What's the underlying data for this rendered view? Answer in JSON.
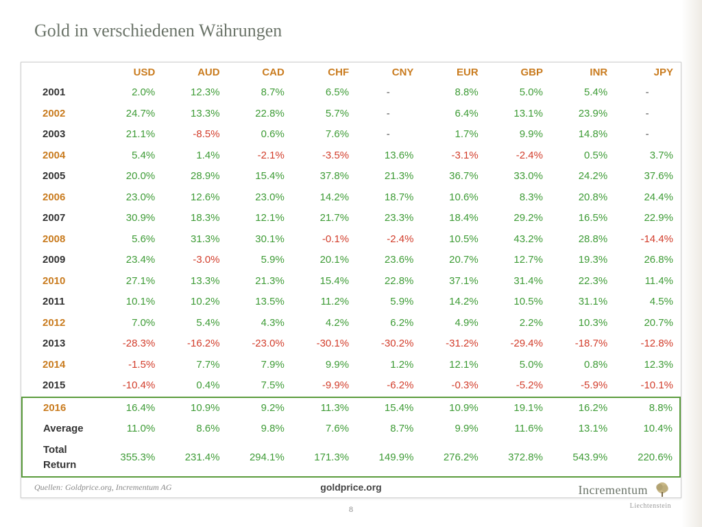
{
  "title": "Gold in verschiedenen Währungen",
  "columns": [
    "USD",
    "AUD",
    "CAD",
    "CHF",
    "CNY",
    "EUR",
    "GBP",
    "INR",
    "JPY"
  ],
  "rows": [
    {
      "year": "2001",
      "yc": "yr-black",
      "v": [
        "2.0%",
        "12.3%",
        "8.7%",
        "6.5%",
        "-",
        "8.8%",
        "5.0%",
        "5.4%",
        "-"
      ]
    },
    {
      "year": "2002",
      "yc": "yr-orange",
      "v": [
        "24.7%",
        "13.3%",
        "22.8%",
        "5.7%",
        "-",
        "6.4%",
        "13.1%",
        "23.9%",
        "-"
      ]
    },
    {
      "year": "2003",
      "yc": "yr-black",
      "v": [
        "21.1%",
        "-8.5%",
        "0.6%",
        "7.6%",
        "-",
        "1.7%",
        "9.9%",
        "14.8%",
        "-"
      ]
    },
    {
      "year": "2004",
      "yc": "yr-orange",
      "v": [
        "5.4%",
        "1.4%",
        "-2.1%",
        "-3.5%",
        "13.6%",
        "-3.1%",
        "-2.4%",
        "0.5%",
        "3.7%"
      ]
    },
    {
      "year": "2005",
      "yc": "yr-black",
      "v": [
        "20.0%",
        "28.9%",
        "15.4%",
        "37.8%",
        "21.3%",
        "36.7%",
        "33.0%",
        "24.2%",
        "37.6%"
      ]
    },
    {
      "year": "2006",
      "yc": "yr-orange",
      "v": [
        "23.0%",
        "12.6%",
        "23.0%",
        "14.2%",
        "18.7%",
        "10.6%",
        "8.3%",
        "20.8%",
        "24.4%"
      ]
    },
    {
      "year": "2007",
      "yc": "yr-black",
      "v": [
        "30.9%",
        "18.3%",
        "12.1%",
        "21.7%",
        "23.3%",
        "18.4%",
        "29.2%",
        "16.5%",
        "22.9%"
      ]
    },
    {
      "year": "2008",
      "yc": "yr-orange",
      "v": [
        "5.6%",
        "31.3%",
        "30.1%",
        "-0.1%",
        "-2.4%",
        "10.5%",
        "43.2%",
        "28.8%",
        "-14.4%"
      ]
    },
    {
      "year": "2009",
      "yc": "yr-black",
      "v": [
        "23.4%",
        "-3.0%",
        "5.9%",
        "20.1%",
        "23.6%",
        "20.7%",
        "12.7%",
        "19.3%",
        "26.8%"
      ]
    },
    {
      "year": "2010",
      "yc": "yr-orange",
      "v": [
        "27.1%",
        "13.3%",
        "21.3%",
        "15.4%",
        "22.8%",
        "37.1%",
        "31.4%",
        "22.3%",
        "11.4%"
      ]
    },
    {
      "year": "2011",
      "yc": "yr-black",
      "v": [
        "10.1%",
        "10.2%",
        "13.5%",
        "11.2%",
        "5.9%",
        "14.2%",
        "10.5%",
        "31.1%",
        "4.5%"
      ]
    },
    {
      "year": "2012",
      "yc": "yr-orange",
      "v": [
        "7.0%",
        "5.4%",
        "4.3%",
        "4.2%",
        "6.2%",
        "4.9%",
        "2.2%",
        "10.3%",
        "20.7%"
      ]
    },
    {
      "year": "2013",
      "yc": "yr-black",
      "v": [
        "-28.3%",
        "-16.2%",
        "-23.0%",
        "-30.1%",
        "-30.2%",
        "-31.2%",
        "-29.4%",
        "-18.7%",
        "-12.8%"
      ]
    },
    {
      "year": "2014",
      "yc": "yr-orange",
      "v": [
        "-1.5%",
        "7.7%",
        "7.9%",
        "9.9%",
        "1.2%",
        "12.1%",
        "5.0%",
        "0.8%",
        "12.3%"
      ]
    },
    {
      "year": "2015",
      "yc": "yr-black",
      "v": [
        "-10.4%",
        "0.4%",
        "7.5%",
        "-9.9%",
        "-6.2%",
        "-0.3%",
        "-5.2%",
        "-5.9%",
        "-10.1%"
      ]
    }
  ],
  "highlight": [
    {
      "year": "2016",
      "yc": "yr-orange",
      "v": [
        "16.4%",
        "10.9%",
        "9.2%",
        "11.3%",
        "15.4%",
        "10.9%",
        "19.1%",
        "16.2%",
        "8.8%"
      ]
    },
    {
      "year": "Average",
      "yc": "yr-black",
      "v": [
        "11.0%",
        "8.6%",
        "9.8%",
        "7.6%",
        "8.7%",
        "9.9%",
        "11.6%",
        "13.1%",
        "10.4%"
      ]
    },
    {
      "year": "Total Return",
      "yc": "yr-black",
      "v": [
        "355.3%",
        "231.4%",
        "294.1%",
        "171.3%",
        "149.9%",
        "276.2%",
        "372.8%",
        "543.9%",
        "220.6%"
      ]
    }
  ],
  "source_label": "goldprice.org",
  "footer_source": "Quellen: Goldprice.org, Incrementum AG",
  "page_number": "8",
  "logo": {
    "main": "Incrementum",
    "sub": "Liechtenstein"
  },
  "colors": {
    "title": "#6b7469",
    "header": "#c97b1e",
    "positive": "#3d9b35",
    "negative": "#d23c2a",
    "highlight_border": "#5a9b3c"
  }
}
